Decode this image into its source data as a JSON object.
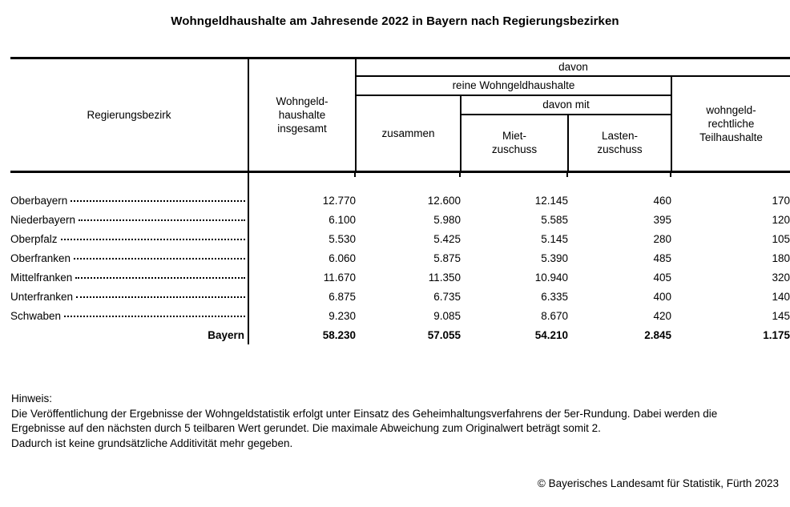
{
  "title": "Wohngeldhaushalte am Jahresende 2022 in Bayern nach Regierungsbezirken",
  "table": {
    "headers": {
      "region": "Regierungsbezirk",
      "total": "Wohngeld-\nhaushalte\ninsgesamt",
      "davon": "davon",
      "reine": "reine Wohngeldhaushalte",
      "zusammen": "zusammen",
      "davon_mit": "davon mit",
      "miet": "Miet-\nzuschuss",
      "lasten": "Lasten-\nzuschuss",
      "teil": "wohngeld-\nrechtliche\nTeilhaushalte"
    },
    "rows": [
      {
        "name": "Oberbayern",
        "total": "12.770",
        "zusammen": "12.600",
        "miet": "12.145",
        "lasten": "460",
        "teil": "170"
      },
      {
        "name": "Niederbayern",
        "total": "6.100",
        "zusammen": "5.980",
        "miet": "5.585",
        "lasten": "395",
        "teil": "120"
      },
      {
        "name": "Oberpfalz",
        "total": "5.530",
        "zusammen": "5.425",
        "miet": "5.145",
        "lasten": "280",
        "teil": "105"
      },
      {
        "name": "Oberfranken",
        "total": "6.060",
        "zusammen": "5.875",
        "miet": "5.390",
        "lasten": "485",
        "teil": "180"
      },
      {
        "name": "Mittelfranken",
        "total": "11.670",
        "zusammen": "11.350",
        "miet": "10.940",
        "lasten": "405",
        "teil": "320"
      },
      {
        "name": "Unterfranken",
        "total": "6.875",
        "zusammen": "6.735",
        "miet": "6.335",
        "lasten": "400",
        "teil": "140"
      },
      {
        "name": "Schwaben",
        "total": "9.230",
        "zusammen": "9.085",
        "miet": "8.670",
        "lasten": "420",
        "teil": "145"
      }
    ],
    "total_row": {
      "name": "Bayern",
      "total": "58.230",
      "zusammen": "57.055",
      "miet": "54.210",
      "lasten": "2.845",
      "teil": "1.175"
    }
  },
  "note": {
    "label": "Hinweis:",
    "text": "Die Veröffentlichung der Ergebnisse der Wohngeldstatistik erfolgt unter Einsatz des Geheimhaltungsverfahrens der 5er-Rundung. Dabei werden die\nErgebnisse auf den nächsten durch 5 teilbaren Wert gerundet. Die maximale Abweichung zum Originalwert beträgt somit 2.\nDadurch ist keine grundsätzliche Additivität mehr gegeben."
  },
  "copyright": "© Bayerisches Landesamt für Statistik, Fürth 2023",
  "colors": {
    "text": "#000000",
    "background": "#ffffff",
    "line": "#000000"
  }
}
